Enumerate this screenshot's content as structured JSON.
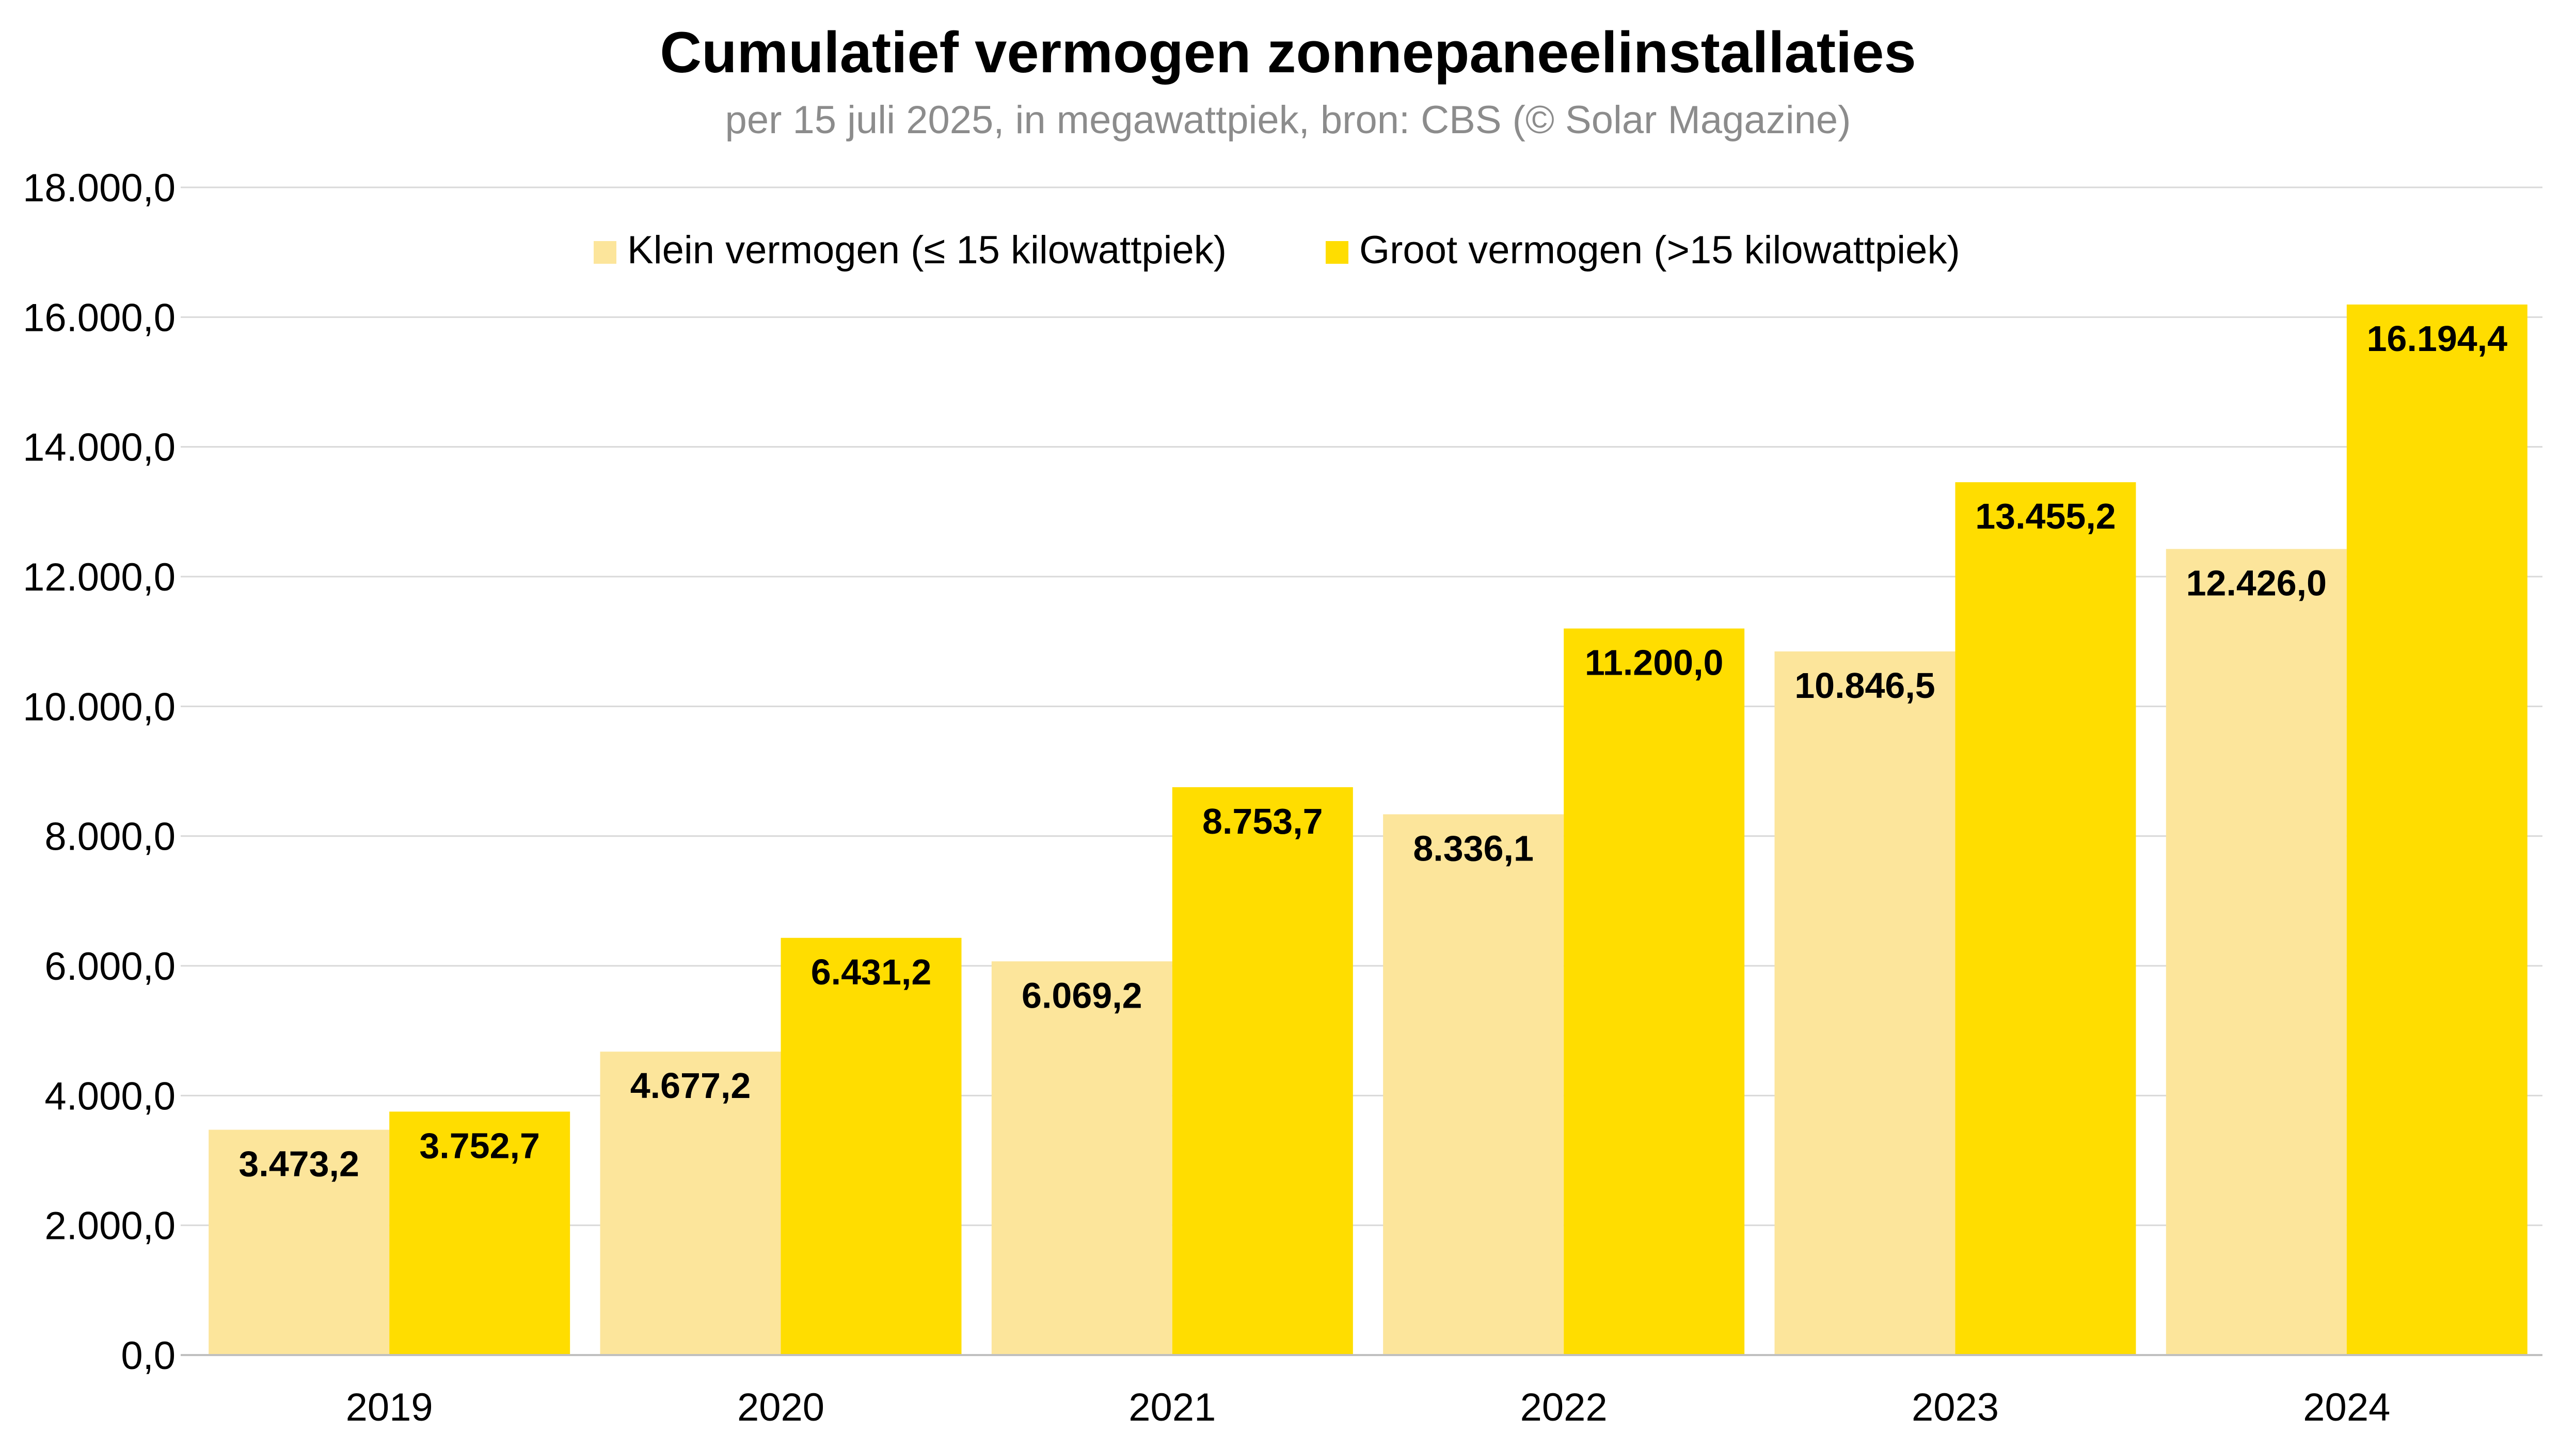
{
  "chart_data": {
    "type": "bar",
    "title": "Cumulatief vermogen zonnepaneelinstallaties",
    "subtitle": "per 15 juli 2025, in megawattpiek, bron: CBS (© Solar Magazine)",
    "categories": [
      "2019",
      "2020",
      "2021",
      "2022",
      "2023",
      "2024"
    ],
    "series": [
      {
        "name": "Klein vermogen (≤ 15 kilowattpiek)",
        "color": "#FCE59B",
        "values": [
          3473.2,
          4677.2,
          6069.2,
          8336.1,
          10846.5,
          12426.0
        ],
        "labels": [
          "3.473,2",
          "4.677,2",
          "6.069,2",
          "8.336,1",
          "10.846,5",
          "12.426,0"
        ]
      },
      {
        "name": "Groot vermogen (>15 kilowattpiek)",
        "color": "#FFDD00",
        "values": [
          3752.7,
          6431.2,
          8753.7,
          11200.0,
          13455.2,
          16194.4
        ],
        "labels": [
          "3.752,7",
          "6.431,2",
          "8.753,7",
          "11.200,0",
          "13.455,2",
          "16.194,4"
        ]
      }
    ],
    "ylim": [
      0,
      18000
    ],
    "yticks": [
      0,
      2000,
      4000,
      6000,
      8000,
      10000,
      12000,
      14000,
      16000,
      18000
    ],
    "ytick_labels": [
      "0,0",
      "2.000,0",
      "4.000,0",
      "6.000,0",
      "8.000,0",
      "10.000,0",
      "12.000,0",
      "14.000,0",
      "16.000,0",
      "18.000,0"
    ],
    "grid": true,
    "legend_position": "top"
  }
}
